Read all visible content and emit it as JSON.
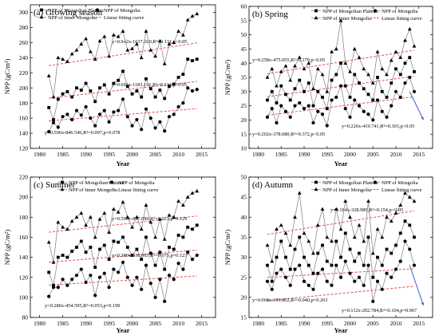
{
  "figure": {
    "legend_labels": {
      "plateau": "NPP of Mongolian Plateau",
      "mongolia": "NPP of Mongolia",
      "inner": "NPP of Inner Mongolia",
      "fit": "Linear fitting curve"
    },
    "colors": {
      "series_line": "#8c8c8c",
      "fit_line": "#e05050",
      "trend_arrow": "#3a5fc8",
      "marker": "#000000"
    }
  },
  "chart_data": [
    {
      "type": "line",
      "panel": "(a) Growing season",
      "title": "(a) Growing season",
      "xlabel": "Year",
      "ylabel": "NPP (gC/m²)",
      "xlim": [
        1978,
        2018
      ],
      "ylim": [
        120,
        310
      ],
      "xticks": [
        1980,
        1985,
        1990,
        1995,
        2000,
        2005,
        2010,
        2015
      ],
      "yticks": [
        120,
        140,
        160,
        180,
        200,
        220,
        240,
        260,
        280,
        300
      ],
      "x": [
        1982,
        1983,
        1984,
        1985,
        1986,
        1987,
        1988,
        1989,
        1990,
        1991,
        1992,
        1993,
        1994,
        1995,
        1996,
        1997,
        1998,
        1999,
        2000,
        2001,
        2002,
        2003,
        2004,
        2005,
        2006,
        2007,
        2008,
        2009,
        2010,
        2011,
        2012,
        2013,
        2014
      ],
      "series": [
        {
          "name": "NPP of Mongolian Plateau",
          "marker": "square",
          "values": [
            174,
            158,
            185,
            192,
            195,
            188,
            200,
            197,
            206,
            196,
            182,
            200,
            204,
            192,
            206,
            210,
            222,
            202,
            192,
            196,
            188,
            212,
            199,
            188,
            197,
            186,
            202,
            205,
            214,
            218,
            238,
            236,
            238
          ]
        },
        {
          "name": "NPP of Mongolia",
          "marker": "circle",
          "values": [
            142,
            154,
            148,
            162,
            165,
            158,
            170,
            164,
            175,
            160,
            150,
            165,
            170,
            155,
            168,
            170,
            185,
            162,
            150,
            158,
            145,
            172,
            160,
            147,
            155,
            143,
            162,
            165,
            175,
            180,
            200,
            196,
            198
          ]
        },
        {
          "name": "NPP of Inner Mongolia",
          "marker": "triangle",
          "values": [
            216,
            188,
            240,
            238,
            235,
            245,
            250,
            258,
            265,
            248,
            238,
            262,
            268,
            242,
            270,
            268,
            275,
            250,
            252,
            258,
            240,
            275,
            250,
            242,
            262,
            232,
            258,
            260,
            275,
            270,
            290,
            295,
            298
          ]
        }
      ],
      "fits": [
        {
          "series": "NPP of Inner Mongolia",
          "slope": 0.942,
          "intercept": -1637.609,
          "label": "y=0.942x-1637.609,R²=0.131,p<0.05"
        },
        {
          "series": "NPP of Mongolian Plateau",
          "slope": 0.691,
          "intercept": -1183.191,
          "label": "y=0.691x-1183.191,R²=0.134,p<0.05"
        },
        {
          "series": "NPP of Mongolia",
          "slope": 0.506,
          "intercept": -846.546,
          "label": "y=0.506x-846.546,R²=0.097,p=0.078"
        }
      ]
    },
    {
      "type": "line",
      "panel": "(b) Spring",
      "title": "(b) Spring",
      "xlabel": "Year",
      "ylabel": "NPP (gC/m²)",
      "xlim": [
        1978,
        2018
      ],
      "ylim": [
        10,
        60
      ],
      "xticks": [
        1980,
        1985,
        1990,
        1995,
        2000,
        2005,
        2010,
        2015
      ],
      "yticks": [
        10,
        15,
        20,
        25,
        30,
        35,
        40,
        45,
        50,
        55,
        60
      ],
      "x": [
        1982,
        1983,
        1984,
        1985,
        1986,
        1987,
        1988,
        1989,
        1990,
        1991,
        1992,
        1993,
        1994,
        1995,
        1996,
        1997,
        1998,
        1999,
        2000,
        2001,
        2002,
        2003,
        2004,
        2005,
        2006,
        2007,
        2008,
        2009,
        2010,
        2011,
        2012,
        2013,
        2014
      ],
      "series": [
        {
          "name": "NPP of Mongolian Plateau",
          "marker": "square",
          "values": [
            27,
            30,
            26,
            32,
            29,
            27,
            31,
            34,
            30,
            33,
            25,
            30,
            28,
            24,
            34,
            36,
            40,
            32,
            28,
            36,
            33,
            31,
            29,
            27,
            35,
            30,
            28,
            33,
            38,
            36,
            40,
            42,
            37
          ]
        },
        {
          "name": "NPP of Mongolia",
          "marker": "circle",
          "values": [
            21,
            24,
            19,
            25,
            23,
            21,
            25,
            26,
            24,
            25,
            19,
            23,
            22,
            18,
            27,
            28,
            32,
            24,
            21,
            27,
            25,
            23,
            22,
            20,
            27,
            23,
            21,
            25,
            30,
            28,
            33,
            35,
            30
          ]
        },
        {
          "name": "NPP of Inner Mongolia",
          "marker": "triangle",
          "values": [
            35,
            38,
            32,
            37,
            39,
            34,
            39,
            42,
            38,
            40,
            31,
            38,
            36,
            30,
            44,
            45,
            55,
            40,
            37,
            45,
            42,
            38,
            36,
            33,
            44,
            38,
            36,
            41,
            44,
            42,
            48,
            52,
            46
          ]
        }
      ],
      "fits": [
        {
          "series": "NPP of Inner Mongolia",
          "slope": 0.258,
          "intercept": -475.055,
          "label": "y=0.258x-475.055,R²=0.179,p<0.05"
        },
        {
          "series": "NPP of Mongolian Plateau",
          "slope": 0.226,
          "intercept": -419.741,
          "label": "y=0.226x-419.741,R²=0.303,p<0.05"
        },
        {
          "series": "NPP of Mongolia",
          "slope": 0.202,
          "intercept": -378.68,
          "label": "y=0.202x-378.680,R²=0.372,p<0.05"
        }
      ]
    },
    {
      "type": "line",
      "panel": "(c) Summer",
      "title": "(c) Summer",
      "xlabel": "Year",
      "ylabel": "NPP (gC/m²)",
      "xlim": [
        1978,
        2018
      ],
      "ylim": [
        80,
        220
      ],
      "xticks": [
        1980,
        1985,
        1990,
        1995,
        2000,
        2005,
        2010,
        2015
      ],
      "yticks": [
        80,
        100,
        120,
        140,
        160,
        180,
        200,
        220
      ],
      "x": [
        1982,
        1983,
        1984,
        1985,
        1986,
        1987,
        1988,
        1989,
        1990,
        1991,
        1992,
        1993,
        1994,
        1995,
        1996,
        1997,
        1998,
        1999,
        2000,
        2001,
        2002,
        2003,
        2004,
        2005,
        2006,
        2007,
        2008,
        2009,
        2010,
        2011,
        2012,
        2013,
        2014
      ],
      "series": [
        {
          "name": "NPP of Mongolian Plateau",
          "marker": "square",
          "values": [
            125,
            112,
            140,
            142,
            140,
            146,
            150,
            156,
            145,
            150,
            130,
            148,
            152,
            138,
            156,
            155,
            160,
            150,
            142,
            148,
            138,
            160,
            144,
            132,
            145,
            128,
            150,
            148,
            162,
            160,
            170,
            168,
            172
          ]
        },
        {
          "name": "NPP of Mongolia",
          "marker": "circle",
          "values": [
            101,
            110,
            110,
            118,
            112,
            118,
            122,
            128,
            115,
            122,
            102,
            120,
            124,
            110,
            128,
            125,
            135,
            120,
            112,
            120,
            108,
            132,
            114,
            100,
            118,
            96,
            122,
            118,
            134,
            128,
            145,
            138,
            142
          ]
        },
        {
          "name": "NPP of Inner Mongolia",
          "marker": "triangle",
          "values": [
            155,
            135,
            175,
            170,
            168,
            176,
            180,
            184,
            172,
            180,
            160,
            178,
            184,
            165,
            188,
            185,
            195,
            180,
            170,
            180,
            168,
            192,
            175,
            160,
            178,
            158,
            182,
            180,
            196,
            192,
            200,
            204,
            206
          ]
        }
      ],
      "fits": [
        {
          "series": "NPP of Inner Mongolia",
          "slope": 0.506,
          "intercept": -837.89,
          "label": "y=0.506x-837.890,R²=0.073,p=0.129"
        },
        {
          "series": "NPP of Mongolian Plateau",
          "slope": 0.38,
          "intercept": -618.063,
          "label": "y=0.380x-618.063,R²=0.075,p=0.123"
        },
        {
          "series": "NPP of Mongolia",
          "slope": 0.286,
          "intercept": -454.595,
          "label": "y=0.286x-454.595,R²=0.053,p=0.199"
        }
      ]
    },
    {
      "type": "line",
      "panel": "(d) Autumn",
      "title": "(d) Autumn",
      "xlabel": "Year",
      "ylabel": "NPP (gC/m²)",
      "xlim": [
        1978,
        2018
      ],
      "ylim": [
        15,
        50
      ],
      "xticks": [
        1980,
        1985,
        1990,
        1995,
        2000,
        2005,
        2010,
        2015
      ],
      "yticks": [
        15,
        20,
        25,
        30,
        35,
        40,
        45,
        50
      ],
      "x": [
        1982,
        1983,
        1984,
        1985,
        1986,
        1987,
        1988,
        1989,
        1990,
        1991,
        1992,
        1993,
        1994,
        1995,
        1996,
        1997,
        1998,
        1999,
        2000,
        2001,
        2002,
        2003,
        2004,
        2005,
        2006,
        2007,
        2008,
        2009,
        2010,
        2011,
        2012,
        2013,
        2014
      ],
      "series": [
        {
          "name": "NPP of Mongolian Plateau",
          "marker": "square",
          "values": [
            28,
            24,
            30,
            34,
            30,
            27,
            32,
            35,
            30,
            28,
            26,
            31,
            33,
            29,
            28,
            34,
            30,
            36,
            32,
            29,
            31,
            28,
            35,
            25,
            30,
            28,
            32,
            31,
            33,
            36,
            39,
            38,
            35
          ]
        },
        {
          "name": "NPP of Mongolia",
          "marker": "circle",
          "values": [
            24,
            22,
            26,
            27,
            25,
            23,
            27,
            28,
            24,
            23,
            22,
            26,
            27,
            24,
            23,
            28,
            25,
            29,
            26,
            24,
            25,
            23,
            28,
            19,
            24,
            22,
            26,
            25,
            27,
            29,
            34,
            32,
            28
          ]
        },
        {
          "name": "NPP of Inner Mongolia",
          "marker": "triangle",
          "values": [
            33,
            29,
            37,
            38,
            36,
            33,
            40,
            46,
            36,
            34,
            31,
            38,
            42,
            35,
            34,
            42,
            37,
            44,
            40,
            35,
            38,
            34,
            44,
            31,
            37,
            35,
            40,
            39,
            41,
            43,
            46,
            45,
            44
          ]
        }
      ],
      "fits": [
        {
          "series": "NPP of Inner Mongolia",
          "slope": 0.184,
          "intercept": -328.989,
          "label": "y=0.184x-328.989,R²=0.154,p<0.05"
        },
        {
          "series": "NPP of Mongolian Plateau",
          "slope": 0.112,
          "intercept": -202.784,
          "label": "y=0.112x-202.784,R²=0.104,p=0.067"
        },
        {
          "series": "NPP of Mongolia",
          "slope": 0.068,
          "intercept": -109.802,
          "label": "y=0.068x-109.802,R²=0.040,p=0.263"
        }
      ]
    }
  ]
}
